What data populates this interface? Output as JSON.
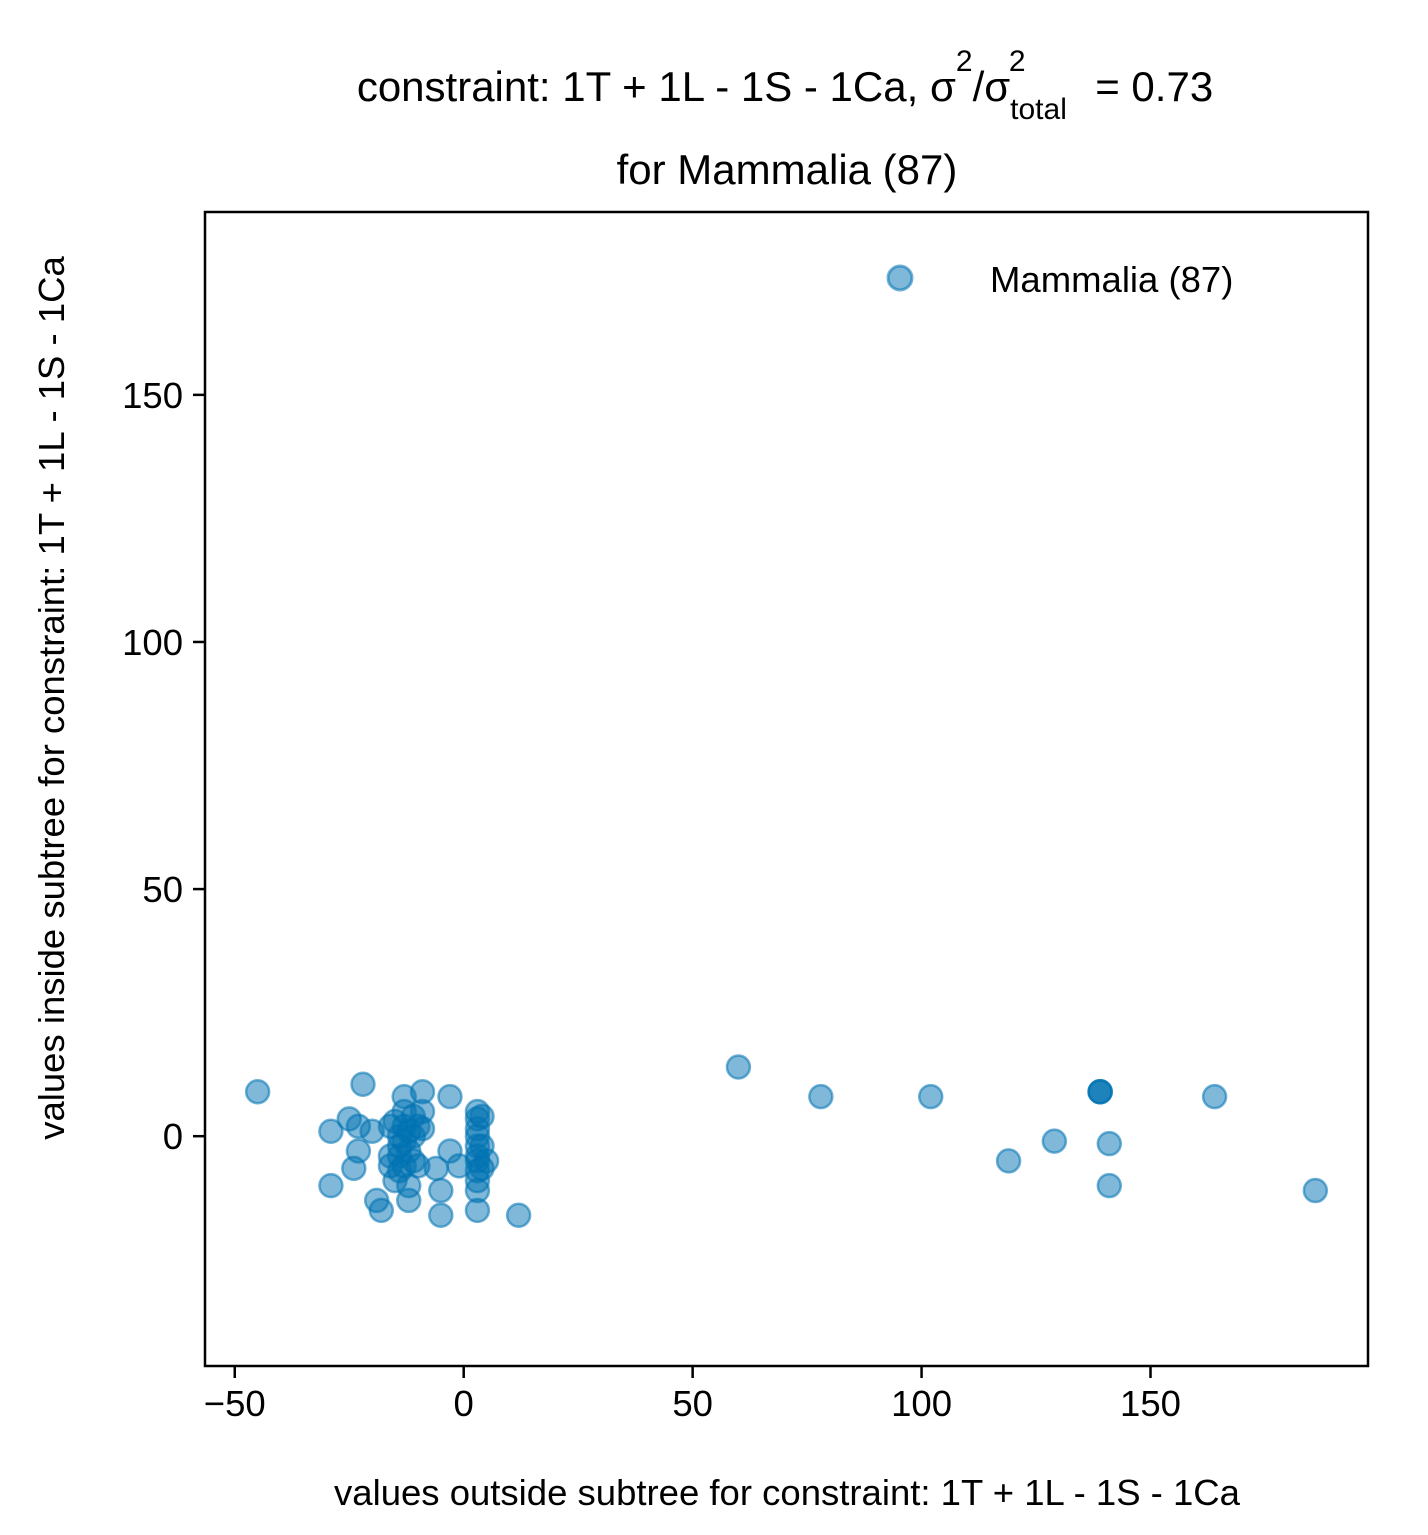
{
  "chart_data": {
    "type": "scatter",
    "title": {
      "prefix": "constraint: 1T + 1L - 1S - 1Ca, σ",
      "sup1": "2",
      "mid": "/σ",
      "sub": "total",
      "sup2": "2",
      "suffix": " =  0.73",
      "line2": "for Mammalia (87)"
    },
    "xlabel": "values outside subtree for constraint: 1T + 1L - 1S - 1Ca",
    "ylabel": "values inside subtree for constraint: 1T + 1L - 1S - 1Ca",
    "xlim": [
      -56.5,
      197.5
    ],
    "ylim": [
      -46.5,
      187
    ],
    "xticks": [
      -50,
      0,
      50,
      100,
      150
    ],
    "xtick_labels": [
      "−50",
      "0",
      "50",
      "100",
      "150"
    ],
    "yticks": [
      0,
      50,
      100,
      150
    ],
    "ytick_labels": [
      "0",
      "50",
      "100",
      "150"
    ],
    "grid": false,
    "legend": {
      "position": "top-right",
      "entries": [
        "Mammalia (87)"
      ]
    },
    "marker_color": "#0072B2",
    "series": [
      {
        "name": "Mammalia (87)",
        "points": [
          [
            -45,
            9
          ],
          [
            -22,
            10.5
          ],
          [
            -25,
            3.5
          ],
          [
            -23,
            2
          ],
          [
            -29,
            1
          ],
          [
            -20,
            1
          ],
          [
            -23,
            -3
          ],
          [
            -24,
            -6.5
          ],
          [
            -29,
            -10
          ],
          [
            -19,
            -13
          ],
          [
            -18,
            -15
          ],
          [
            -16,
            2
          ],
          [
            -16,
            -4
          ],
          [
            -16,
            -6
          ],
          [
            -15,
            -9
          ],
          [
            -15,
            3
          ],
          [
            -14,
            0
          ],
          [
            -14,
            -2
          ],
          [
            -14,
            -4
          ],
          [
            -14,
            -7
          ],
          [
            -13,
            8
          ],
          [
            -13,
            5
          ],
          [
            -13,
            2
          ],
          [
            -13,
            -1
          ],
          [
            -13,
            -6
          ],
          [
            -12,
            1
          ],
          [
            -12,
            -3
          ],
          [
            -12,
            -10
          ],
          [
            -12,
            -13
          ],
          [
            -11,
            4
          ],
          [
            -11,
            0
          ],
          [
            -11,
            -5
          ],
          [
            -10,
            2
          ],
          [
            -10,
            -6
          ],
          [
            -9,
            9
          ],
          [
            -9,
            5
          ],
          [
            -9,
            1.5
          ],
          [
            -6,
            -6.5
          ],
          [
            -5,
            -11
          ],
          [
            -5,
            -16
          ],
          [
            -3,
            8
          ],
          [
            -3,
            -3
          ],
          [
            -1,
            -6
          ],
          [
            3,
            5
          ],
          [
            3,
            3.5
          ],
          [
            3,
            1.5
          ],
          [
            3,
            0
          ],
          [
            3,
            -2
          ],
          [
            3,
            -4
          ],
          [
            3,
            -5
          ],
          [
            3,
            -7
          ],
          [
            3,
            -9
          ],
          [
            3,
            -11
          ],
          [
            3,
            -15
          ],
          [
            4,
            4
          ],
          [
            4,
            -2
          ],
          [
            4,
            -6.5
          ],
          [
            5,
            -5
          ],
          [
            12,
            -16
          ],
          [
            60,
            14
          ],
          [
            78,
            8
          ],
          [
            102,
            8
          ],
          [
            119,
            -5
          ],
          [
            129,
            -1
          ],
          [
            139,
            9
          ],
          [
            139,
            9
          ],
          [
            139,
            9
          ],
          [
            141,
            -1.5
          ],
          [
            141,
            -10
          ],
          [
            164,
            8
          ],
          [
            186,
            -11
          ]
        ]
      }
    ]
  }
}
